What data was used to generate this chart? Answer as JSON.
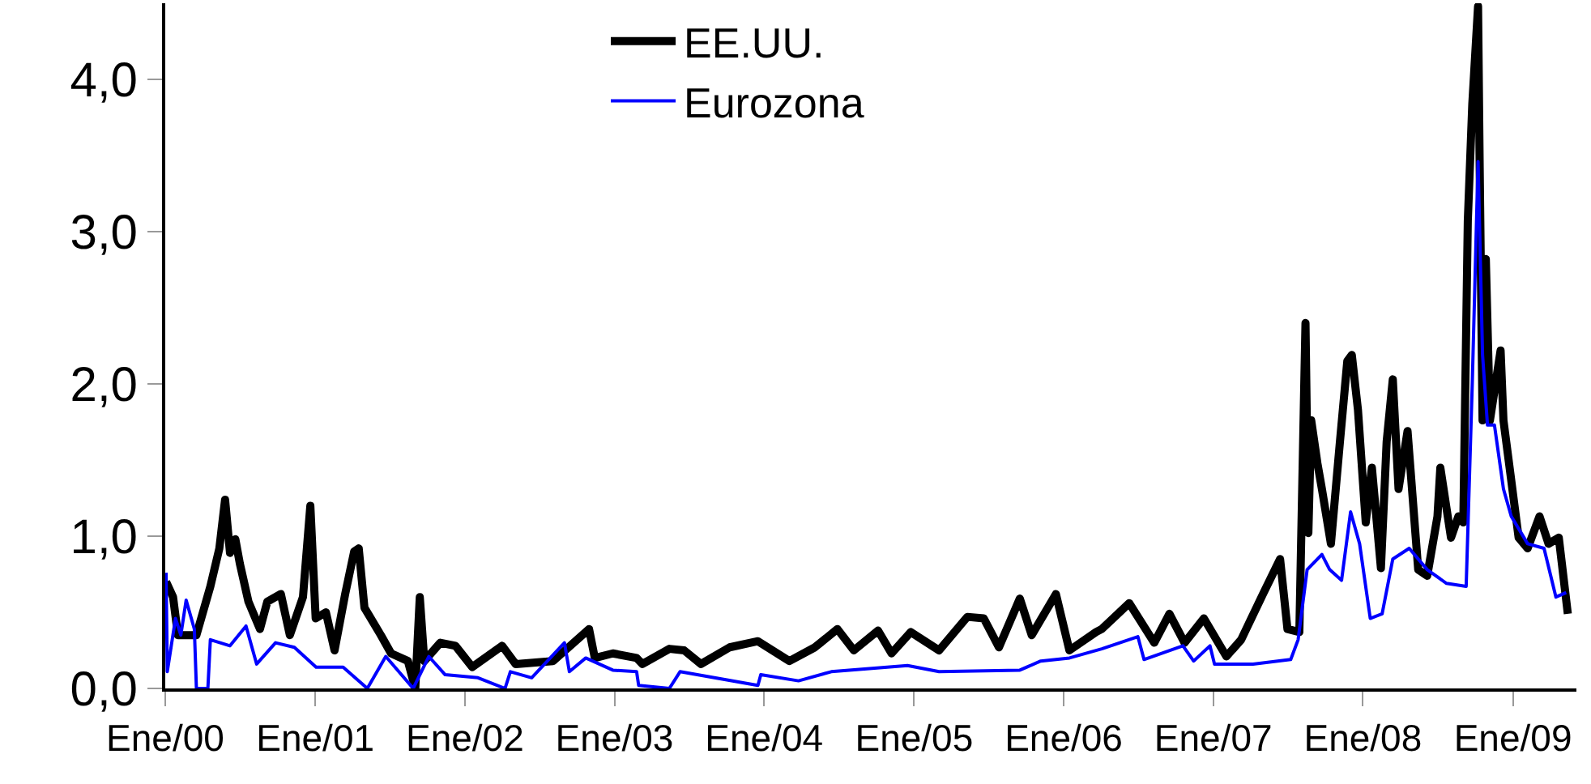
{
  "chart_data": {
    "type": "line",
    "series": [
      {
        "name": "EE.UU.",
        "color": "#000000",
        "x": [
          "2000-01-03",
          "2000-01-20",
          "2000-02-01",
          "2000-03-17",
          "2000-04-20",
          "2000-05-12",
          "2000-05-26",
          "2000-06-07",
          "2000-06-20",
          "2000-07-01",
          "2000-07-22",
          "2000-08-19",
          "2000-09-06",
          "2000-10-09",
          "2000-10-31",
          "2000-12-02",
          "2000-12-20",
          "2001-01-02",
          "2001-01-27",
          "2001-02-17",
          "2001-03-15",
          "2001-04-06",
          "2001-04-17",
          "2001-05-01",
          "2001-06-10",
          "2001-07-05",
          "2001-08-15",
          "2001-09-02",
          "2001-09-13",
          "2001-09-24",
          "2001-11-02",
          "2001-12-09",
          "2002-01-19",
          "2002-04-02",
          "2002-05-05",
          "2002-08-04",
          "2002-10-31",
          "2002-11-14",
          "2002-12-28",
          "2003-02-24",
          "2003-03-10",
          "2003-05-15",
          "2003-06-20",
          "2003-07-31",
          "2003-10-09",
          "2003-12-17",
          "2004-03-03",
          "2004-05-04",
          "2004-06-28",
          "2004-08-07",
          "2004-10-05",
          "2004-11-07",
          "2004-12-24",
          "2005-03-03",
          "2005-05-11",
          "2005-06-20",
          "2005-07-27",
          "2005-09-16",
          "2005-10-15",
          "2005-12-13",
          "2006-01-15",
          "2006-03-21",
          "2006-04-04",
          "2006-06-10",
          "2006-08-10",
          "2006-09-16",
          "2006-10-23",
          "2006-12-09",
          "2007-02-02",
          "2007-03-10",
          "2007-05-04",
          "2007-06-13",
          "2007-07-01",
          "2007-07-30",
          "2007-08-14",
          "2007-08-21",
          "2007-08-28",
          "2007-09-12",
          "2007-09-23",
          "2007-10-15",
          "2007-11-06",
          "2007-11-24",
          "2007-12-05",
          "2007-12-20",
          "2008-01-08",
          "2008-01-23",
          "2008-02-14",
          "2008-02-28",
          "2008-03-14",
          "2008-03-28",
          "2008-04-19",
          "2008-05-15",
          "2008-06-06",
          "2008-07-01",
          "2008-07-08",
          "2008-08-03",
          "2008-08-21",
          "2008-09-02",
          "2008-09-13",
          "2008-09-24",
          "2008-10-08",
          "2008-10-12",
          "2008-10-19",
          "2008-10-27",
          "2008-11-06",
          "2008-12-02",
          "2008-12-09",
          "2008-12-24",
          "2009-01-15",
          "2009-02-06",
          "2009-03-07",
          "2009-03-29",
          "2009-04-23",
          "2009-05-15"
        ],
        "values": [
          0.7,
          0.6,
          0.35,
          0.35,
          0.67,
          0.92,
          1.24,
          0.89,
          0.98,
          0.82,
          0.57,
          0.39,
          0.57,
          0.62,
          0.35,
          0.6,
          1.2,
          0.46,
          0.5,
          0.25,
          0.62,
          0.9,
          0.92,
          0.53,
          0.35,
          0.23,
          0.18,
          0.0,
          0.6,
          0.18,
          0.3,
          0.28,
          0.14,
          0.28,
          0.16,
          0.18,
          0.39,
          0.2,
          0.23,
          0.2,
          0.16,
          0.26,
          0.25,
          0.16,
          0.27,
          0.31,
          0.18,
          0.27,
          0.39,
          0.25,
          0.38,
          0.23,
          0.37,
          0.25,
          0.47,
          0.46,
          0.27,
          0.59,
          0.35,
          0.62,
          0.25,
          0.37,
          0.39,
          0.56,
          0.3,
          0.49,
          0.3,
          0.46,
          0.21,
          0.32,
          0.63,
          0.85,
          0.39,
          0.37,
          2.4,
          1.02,
          1.76,
          1.48,
          1.31,
          0.95,
          1.62,
          2.15,
          2.19,
          1.83,
          1.09,
          1.45,
          0.79,
          1.62,
          2.03,
          1.31,
          1.69,
          0.78,
          0.74,
          1.13,
          1.45,
          0.99,
          1.13,
          1.09,
          3.07,
          3.84,
          4.48,
          3.42,
          1.76,
          2.82,
          1.76,
          2.22,
          1.76,
          1.45,
          0.99,
          0.92,
          1.13,
          0.95,
          0.99,
          0.49
        ]
      },
      {
        "name": "Eurozona",
        "color": "#0000ff",
        "x": [
          "2000-01-03",
          "2000-01-06",
          "2000-01-26",
          "2000-02-08",
          "2000-02-21",
          "2000-03-12",
          "2000-03-17",
          "2000-04-14",
          "2000-04-20",
          "2000-06-07",
          "2000-07-16",
          "2000-08-11",
          "2000-09-26",
          "2000-11-11",
          "2001-01-03",
          "2001-03-10",
          "2001-05-08",
          "2001-06-22",
          "2001-08-28",
          "2001-10-05",
          "2001-11-14",
          "2002-02-02",
          "2002-04-09",
          "2002-04-22",
          "2002-06-13",
          "2002-09-01",
          "2002-09-13",
          "2002-10-23",
          "2002-12-28",
          "2003-02-24",
          "2003-03-01",
          "2003-05-15",
          "2003-06-10",
          "2003-12-17",
          "2003-12-24",
          "2004-03-25",
          "2004-06-13",
          "2004-12-16",
          "2005-03-03",
          "2005-09-16",
          "2005-11-06",
          "2006-01-15",
          "2006-04-04",
          "2006-07-01",
          "2006-07-16",
          "2006-10-19",
          "2006-11-14",
          "2006-12-24",
          "2007-01-04",
          "2007-04-08",
          "2007-07-09",
          "2007-07-27",
          "2007-08-18",
          "2007-09-23",
          "2007-10-12",
          "2007-11-10",
          "2007-12-02",
          "2007-12-24",
          "2008-01-19",
          "2008-02-17",
          "2008-03-14",
          "2008-04-23",
          "2008-06-06",
          "2008-07-23",
          "2008-09-09",
          "2008-09-24",
          "2008-10-08",
          "2008-10-19",
          "2008-10-31",
          "2008-11-17",
          "2008-12-09",
          "2008-12-28",
          "2009-02-06",
          "2009-03-18",
          "2009-04-16",
          "2009-05-11"
        ],
        "values": [
          0.76,
          0.11,
          0.46,
          0.35,
          0.58,
          0.39,
          0.0,
          0.0,
          0.32,
          0.28,
          0.41,
          0.16,
          0.3,
          0.27,
          0.14,
          0.14,
          0.0,
          0.21,
          0.0,
          0.21,
          0.09,
          0.07,
          0.0,
          0.11,
          0.07,
          0.3,
          0.11,
          0.2,
          0.12,
          0.11,
          0.02,
          0.0,
          0.11,
          0.02,
          0.09,
          0.05,
          0.11,
          0.15,
          0.11,
          0.12,
          0.18,
          0.2,
          0.26,
          0.34,
          0.19,
          0.28,
          0.18,
          0.28,
          0.16,
          0.16,
          0.19,
          0.32,
          0.78,
          0.88,
          0.78,
          0.71,
          1.16,
          0.95,
          0.46,
          0.49,
          0.85,
          0.92,
          0.78,
          0.69,
          0.67,
          2.01,
          3.46,
          2.19,
          1.73,
          1.73,
          1.31,
          1.13,
          0.95,
          0.92,
          0.6,
          0.63
        ]
      }
    ],
    "xlim": [
      "2000-01-01",
      "2009-06-05"
    ],
    "xticks": [
      {
        "value": "2000-01-01",
        "label": "Ene/00"
      },
      {
        "value": "2001-01-01",
        "label": "Ene/01"
      },
      {
        "value": "2002-01-01",
        "label": "Ene/02"
      },
      {
        "value": "2003-01-01",
        "label": "Ene/03"
      },
      {
        "value": "2004-01-01",
        "label": "Ene/04"
      },
      {
        "value": "2005-01-01",
        "label": "Ene/05"
      },
      {
        "value": "2006-01-01",
        "label": "Ene/06"
      },
      {
        "value": "2007-01-01",
        "label": "Ene/07"
      },
      {
        "value": "2008-01-01",
        "label": "Ene/08"
      },
      {
        "value": "2009-01-01",
        "label": "Ene/09"
      }
    ],
    "ylim": [
      0,
      4.5
    ],
    "yticks": [
      {
        "value": 0,
        "label": "0,0"
      },
      {
        "value": 1,
        "label": "1,0"
      },
      {
        "value": 2,
        "label": "2,0"
      },
      {
        "value": 3,
        "label": "3,0"
      },
      {
        "value": 4,
        "label": "4,0"
      }
    ],
    "legend": "top",
    "marker": "none",
    "line_style": "solid"
  }
}
